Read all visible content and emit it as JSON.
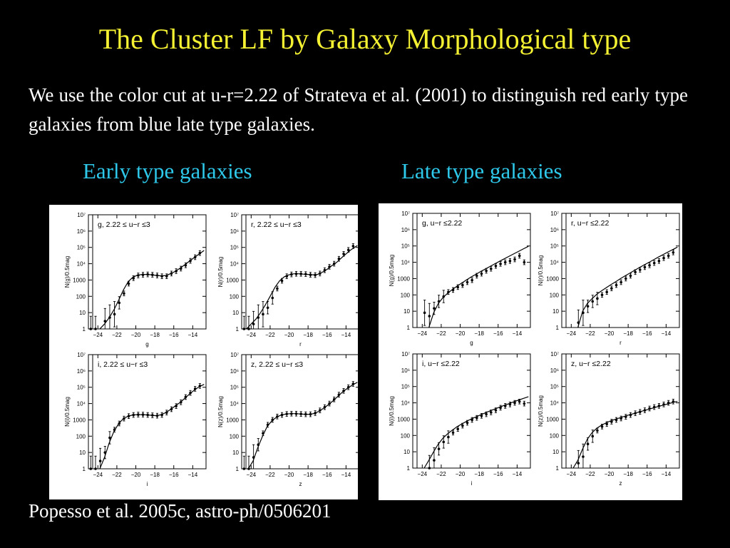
{
  "title": "The Cluster LF by Galaxy Morphological type",
  "intro": "We use the color cut at u-r=2.22 of Strateva et al. (2001) to distinguish red early type galaxies from blue late type galaxies.",
  "headings": {
    "early": "Early type galaxies",
    "late": "Late type galaxies"
  },
  "citation": "Popesso et al. 2005c, astro-ph/0506201",
  "chart_data": [
    {
      "type": "scatter",
      "group": "early",
      "label": "g,  2.22 ≤ u−r ≤3",
      "xlabel": "g",
      "ylabel": "N(g)/0.5mag",
      "xticks": [
        -24,
        -22,
        -20,
        -18,
        -16,
        -14
      ],
      "yticks": [
        "1",
        "10",
        "100",
        "1000",
        "10⁴",
        "10⁵",
        "10⁶",
        "10⁷"
      ],
      "xlim": [
        -25,
        -12.6
      ],
      "ylim": [
        1,
        10000000
      ],
      "log_y": true,
      "x": [
        -24.75,
        -24.25,
        -23.25,
        -22.75,
        -22.25,
        -21.75,
        -21.25,
        -20.75,
        -20.25,
        -19.75,
        -19.25,
        -18.75,
        -18.25,
        -17.75,
        -17.25,
        -16.75,
        -16.25,
        -15.75,
        -15.25,
        -14.75,
        -14.25,
        -13.75,
        -13.25
      ],
      "y": [
        1,
        1,
        3,
        5,
        8,
        40,
        150,
        600,
        1300,
        1900,
        2100,
        2200,
        2100,
        1900,
        1700,
        1700,
        2500,
        3500,
        5000,
        8000,
        15000,
        25000,
        45000
      ],
      "fit": {
        "x": [
          -23.8,
          -23.3,
          -22.8,
          -22.3,
          -21.8,
          -21.3,
          -20.8,
          -20.3,
          -19.8,
          -19.3,
          -18.8,
          -18.3,
          -17.8,
          -17.3,
          -16.8,
          -16.3,
          -15.8,
          -15.3,
          -14.8,
          -14.3,
          -13.8,
          -13.3,
          -12.8
        ],
        "y": [
          1,
          2,
          5,
          15,
          60,
          250,
          800,
          1500,
          2000,
          2200,
          2200,
          2100,
          1900,
          1800,
          1900,
          2500,
          3500,
          5500,
          9000,
          15000,
          25000,
          40000,
          65000
        ]
      }
    },
    {
      "type": "scatter",
      "group": "early",
      "label": "r,  2.22 ≤ u−r ≤3",
      "xlabel": "r",
      "ylabel": "N(r)/0.5mag",
      "xticks": [
        -24,
        -22,
        -20,
        -18,
        -16,
        -14
      ],
      "yticks": [
        "1",
        "10",
        "100",
        "1000",
        "10⁴",
        "10⁵",
        "10⁶",
        "10⁷"
      ],
      "xlim": [
        -25,
        -12.6
      ],
      "ylim": [
        1,
        10000000
      ],
      "log_y": true,
      "x": [
        -24.75,
        -24.25,
        -23.75,
        -23.25,
        -22.75,
        -22.25,
        -21.75,
        -21.25,
        -20.75,
        -20.25,
        -19.75,
        -19.25,
        -18.75,
        -18.25,
        -17.75,
        -17.25,
        -16.75,
        -16.25,
        -15.75,
        -15.25,
        -14.75,
        -14.25,
        -13.75,
        -13.25
      ],
      "y": [
        1,
        1,
        2,
        5,
        8,
        20,
        80,
        300,
        900,
        1700,
        2200,
        2400,
        2400,
        2300,
        2100,
        2000,
        2500,
        4000,
        6500,
        10000,
        20000,
        40000,
        70000,
        120000
      ],
      "fit": {
        "x": [
          -24.5,
          -24,
          -23.5,
          -23,
          -22.5,
          -22,
          -21.5,
          -21,
          -20.5,
          -20,
          -19.5,
          -19,
          -18.5,
          -18,
          -17.5,
          -17,
          -16.5,
          -16,
          -15.5,
          -15,
          -14.5,
          -14,
          -13.5,
          -13,
          -12.8
        ],
        "y": [
          1,
          2,
          4,
          10,
          30,
          100,
          350,
          900,
          1600,
          2100,
          2400,
          2400,
          2300,
          2200,
          2100,
          2200,
          3000,
          4500,
          7500,
          12000,
          22000,
          40000,
          70000,
          110000,
          130000
        ]
      }
    },
    {
      "type": "scatter",
      "group": "early",
      "label": "i,  2.22 ≤ u−r ≤3",
      "xlabel": "i",
      "ylabel": "N(i)/0.5mag",
      "xticks": [
        -24,
        -22,
        -20,
        -18,
        -16,
        -14
      ],
      "yticks": [
        "1",
        "10",
        "100",
        "1000",
        "10⁴",
        "10⁵",
        "10⁶",
        "10⁷"
      ],
      "xlim": [
        -25,
        -12.6
      ],
      "ylim": [
        1,
        10000000
      ],
      "log_y": true,
      "x": [
        -24.75,
        -24.25,
        -23.75,
        -23.25,
        -22.75,
        -22.25,
        -21.75,
        -21.25,
        -20.75,
        -20.25,
        -19.75,
        -19.25,
        -18.75,
        -18.25,
        -17.75,
        -17.25,
        -16.75,
        -16.25,
        -15.75,
        -15.25,
        -14.75,
        -14.25,
        -13.75,
        -13.25
      ],
      "y": [
        1,
        1,
        3,
        10,
        80,
        250,
        600,
        1200,
        1700,
        2000,
        2100,
        2100,
        2000,
        1900,
        1800,
        2000,
        2800,
        4500,
        7000,
        12000,
        25000,
        45000,
        80000,
        120000
      ],
      "fit": {
        "x": [
          -23.8,
          -23.3,
          -22.8,
          -22.3,
          -21.8,
          -21.3,
          -20.8,
          -20.3,
          -19.8,
          -19.3,
          -18.8,
          -18.3,
          -17.8,
          -17.3,
          -16.8,
          -16.3,
          -15.8,
          -15.3,
          -14.8,
          -14.3,
          -13.8,
          -13.3,
          -12.8
        ],
        "y": [
          1,
          5,
          40,
          200,
          600,
          1200,
          1700,
          2000,
          2100,
          2100,
          2000,
          1900,
          1800,
          2100,
          2900,
          4500,
          7500,
          12000,
          22000,
          40000,
          70000,
          110000,
          150000
        ]
      }
    },
    {
      "type": "scatter",
      "group": "early",
      "label": "z,  2.22 ≤ u−r ≤3",
      "xlabel": "z",
      "ylabel": "N(z)/0.5mag",
      "xticks": [
        -24,
        -22,
        -20,
        -18,
        -16,
        -14
      ],
      "yticks": [
        "1",
        "10",
        "100",
        "1000",
        "10⁴",
        "10⁵",
        "10⁶",
        "10⁷"
      ],
      "xlim": [
        -25,
        -12.6
      ],
      "ylim": [
        1,
        10000000
      ],
      "log_y": true,
      "x": [
        -24.75,
        -24.25,
        -23.75,
        -23.25,
        -22.75,
        -22.25,
        -21.75,
        -21.25,
        -20.75,
        -20.25,
        -19.75,
        -19.25,
        -18.75,
        -18.25,
        -17.75,
        -17.25,
        -16.75,
        -16.25,
        -15.75,
        -15.25,
        -14.75,
        -14.25,
        -13.75,
        -13.25
      ],
      "y": [
        1,
        1,
        5,
        30,
        150,
        500,
        1000,
        1600,
        2000,
        2300,
        2400,
        2400,
        2300,
        2200,
        2200,
        2600,
        3800,
        6000,
        10000,
        18000,
        35000,
        60000,
        100000,
        160000
      ],
      "fit": {
        "x": [
          -24.3,
          -23.8,
          -23.3,
          -22.8,
          -22.3,
          -21.8,
          -21.3,
          -20.8,
          -20.3,
          -19.8,
          -19.3,
          -18.8,
          -18.3,
          -17.8,
          -17.3,
          -16.8,
          -16.3,
          -15.8,
          -15.3,
          -14.8,
          -14.3,
          -13.8,
          -13.3,
          -12.8
        ],
        "y": [
          1,
          3,
          20,
          100,
          400,
          900,
          1500,
          2000,
          2300,
          2400,
          2400,
          2300,
          2200,
          2200,
          2500,
          3500,
          5500,
          9000,
          16000,
          30000,
          55000,
          90000,
          140000,
          200000
        ]
      }
    },
    {
      "type": "scatter",
      "group": "late",
      "label": "g,  u−r ≤2.22",
      "xlabel": "g",
      "ylabel": "N(g)/0.5mag",
      "xticks": [
        -24,
        -22,
        -20,
        -18,
        -16,
        -14
      ],
      "yticks": [
        "1",
        "10",
        "100",
        "1000",
        "10⁴",
        "10⁵",
        "10⁶",
        "10⁷"
      ],
      "xlim": [
        -25,
        -12.6
      ],
      "ylim": [
        1,
        10000000
      ],
      "log_y": true,
      "x": [
        -23.75,
        -23.25,
        -22.75,
        -22.25,
        -21.75,
        -21.25,
        -20.75,
        -20.25,
        -19.75,
        -19.25,
        -18.75,
        -18.25,
        -17.75,
        -17.25,
        -16.75,
        -16.25,
        -15.75,
        -15.25,
        -14.75,
        -14.25,
        -13.75,
        -13.25
      ],
      "y": [
        8,
        5,
        15,
        40,
        80,
        150,
        200,
        300,
        400,
        600,
        800,
        1500,
        2000,
        3000,
        4000,
        6000,
        8000,
        10000,
        12000,
        15000,
        25000,
        10000
      ],
      "fit": {
        "x": [
          -23.3,
          -22.8,
          -22.3,
          -21.8,
          -21.3,
          -20.8,
          -20.3,
          -19.8,
          -19.3,
          -18.8,
          -18.3,
          -17.8,
          -17.3,
          -16.8,
          -16.3,
          -15.8,
          -15.3,
          -14.8,
          -14.3,
          -13.8,
          -13.3,
          -12.8
        ],
        "y": [
          1,
          8,
          30,
          70,
          130,
          220,
          350,
          550,
          850,
          1300,
          1900,
          2800,
          4000,
          5800,
          8300,
          12000,
          17000,
          24000,
          34000,
          48000,
          68000,
          95000
        ]
      }
    },
    {
      "type": "scatter",
      "group": "late",
      "label": "r,  u−r ≤2.22",
      "xlabel": "r",
      "ylabel": "N(r)/0.5mag",
      "xticks": [
        -24,
        -22,
        -20,
        -18,
        -16,
        -14
      ],
      "yticks": [
        "1",
        "10",
        "100",
        "1000",
        "10⁴",
        "10⁵",
        "10⁶",
        "10⁷"
      ],
      "xlim": [
        -25,
        -12.6
      ],
      "ylim": [
        1,
        10000000
      ],
      "log_y": true,
      "x": [
        -23.25,
        -22.75,
        -22.25,
        -21.75,
        -21.25,
        -20.75,
        -20.25,
        -19.75,
        -19.25,
        -18.75,
        -18.25,
        -17.75,
        -17.25,
        -16.75,
        -16.25,
        -15.75,
        -15.25,
        -14.75,
        -14.25,
        -13.75,
        -13.25
      ],
      "y": [
        2,
        8,
        20,
        40,
        60,
        100,
        150,
        250,
        400,
        600,
        1000,
        1500,
        2500,
        3500,
        5000,
        6500,
        9000,
        12000,
        18000,
        25000,
        40000
      ],
      "fit": {
        "x": [
          -23.3,
          -22.8,
          -22.3,
          -21.8,
          -21.3,
          -20.8,
          -20.3,
          -19.8,
          -19.3,
          -18.8,
          -18.3,
          -17.8,
          -17.3,
          -16.8,
          -16.3,
          -15.8,
          -15.3,
          -14.8,
          -14.3,
          -13.8,
          -13.3,
          -12.8
        ],
        "y": [
          1,
          10,
          30,
          60,
          110,
          180,
          280,
          430,
          650,
          1000,
          1500,
          2200,
          3300,
          4800,
          7000,
          10000,
          14500,
          21000,
          30000,
          43000,
          60000,
          85000
        ]
      }
    },
    {
      "type": "scatter",
      "group": "late",
      "label": "i,  u−r ≤2.22",
      "xlabel": "i",
      "ylabel": "N(i)/0.5mag",
      "xticks": [
        -24,
        -22,
        -20,
        -18,
        -16,
        -14
      ],
      "yticks": [
        "1",
        "10",
        "100",
        "1000",
        "10⁴",
        "10⁵",
        "10⁶",
        "10⁷"
      ],
      "xlim": [
        -25,
        -12.6
      ],
      "ylim": [
        1,
        10000000
      ],
      "log_y": true,
      "x": [
        -23.25,
        -22.75,
        -22.25,
        -21.75,
        -21.25,
        -20.75,
        -20.25,
        -19.75,
        -19.25,
        -18.75,
        -18.25,
        -17.75,
        -17.25,
        -16.75,
        -16.25,
        -15.75,
        -15.25,
        -14.75,
        -14.25,
        -13.75,
        -13.25
      ],
      "y": [
        1,
        3,
        15,
        40,
        80,
        150,
        250,
        400,
        600,
        900,
        1200,
        1600,
        2000,
        2600,
        3500,
        5000,
        6500,
        8000,
        10000,
        12000,
        9000
      ],
      "fit": {
        "x": [
          -23.8,
          -23.3,
          -22.8,
          -22.3,
          -21.8,
          -21.3,
          -20.8,
          -20.3,
          -19.8,
          -19.3,
          -18.8,
          -18.3,
          -17.8,
          -17.3,
          -16.8,
          -16.3,
          -15.8,
          -15.3,
          -14.8,
          -14.3,
          -13.8,
          -13.3,
          -12.8
        ],
        "y": [
          1,
          3,
          10,
          30,
          70,
          130,
          220,
          350,
          520,
          750,
          1050,
          1400,
          1900,
          2500,
          3300,
          4300,
          5600,
          7200,
          9200,
          12000,
          15000,
          19000,
          24000
        ]
      }
    },
    {
      "type": "scatter",
      "group": "late",
      "label": "z,  u−r ≤2.22",
      "xlabel": "z",
      "ylabel": "N(z)/0.5mag",
      "xticks": [
        -24,
        -22,
        -20,
        -18,
        -16,
        -14
      ],
      "yticks": [
        "1",
        "10",
        "100",
        "1000",
        "10⁴",
        "10⁵",
        "10⁶",
        "10⁷"
      ],
      "xlim": [
        -25,
        -12.6
      ],
      "ylim": [
        1,
        10000000
      ],
      "log_y": true,
      "x": [
        -23.25,
        -22.75,
        -22.25,
        -21.75,
        -21.25,
        -20.75,
        -20.25,
        -19.75,
        -19.25,
        -18.75,
        -18.25,
        -17.75,
        -17.25,
        -16.75,
        -16.25,
        -15.75,
        -15.25,
        -14.75,
        -14.25,
        -13.75,
        -13.25
      ],
      "y": [
        2,
        5,
        30,
        90,
        200,
        350,
        500,
        700,
        900,
        1100,
        1400,
        1800,
        2300,
        2800,
        3500,
        4500,
        5500,
        6500,
        8000,
        10000,
        12000
      ],
      "fit": {
        "x": [
          -23.8,
          -23.3,
          -22.8,
          -22.3,
          -21.8,
          -21.3,
          -20.8,
          -20.3,
          -19.8,
          -19.3,
          -18.8,
          -18.3,
          -17.8,
          -17.3,
          -16.8,
          -16.3,
          -15.8,
          -15.3,
          -14.8,
          -14.3,
          -13.8,
          -13.3,
          -12.8
        ],
        "y": [
          1,
          3,
          15,
          60,
          150,
          280,
          430,
          600,
          800,
          1000,
          1250,
          1550,
          1900,
          2300,
          2800,
          3400,
          4100,
          5000,
          6000,
          7200,
          8700,
          10500,
          12500
        ]
      }
    }
  ]
}
